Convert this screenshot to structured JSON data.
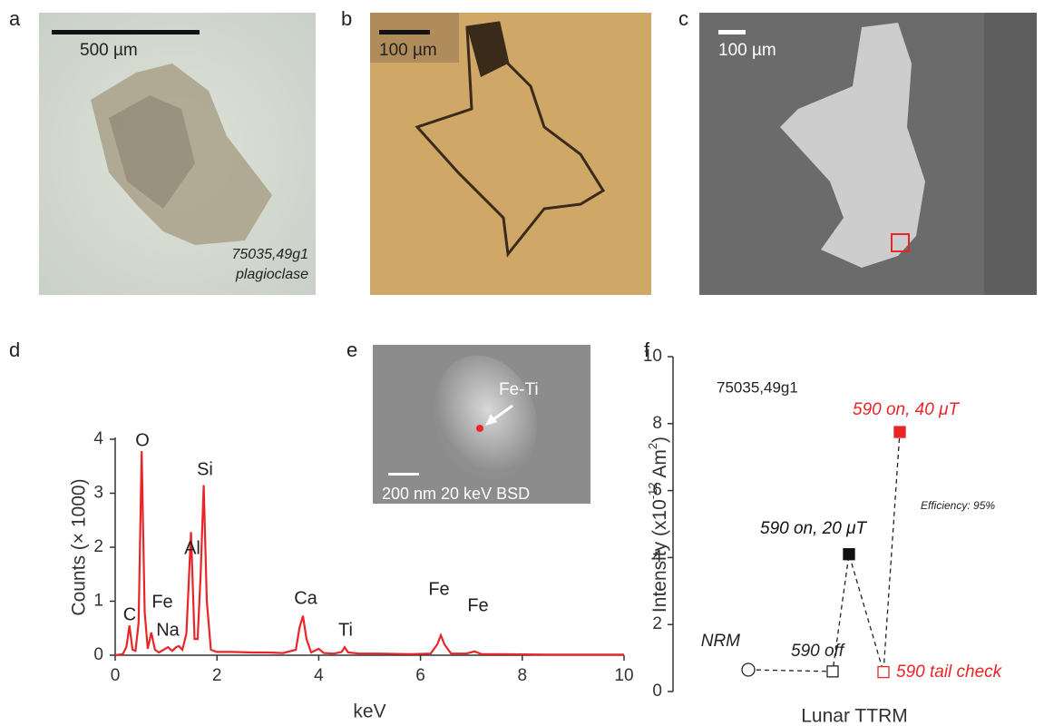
{
  "panels": {
    "a": {
      "letter": "a",
      "scale_label": "500 µm",
      "caption": [
        "75035,49g1",
        "plagioclase"
      ]
    },
    "b": {
      "letter": "b",
      "scale_label": "100 µm"
    },
    "c": {
      "letter": "c",
      "scale_label": "100 µm"
    },
    "d": {
      "letter": "d"
    },
    "e": {
      "letter": "e",
      "annotation": "Fe-Ti",
      "caption": "200 nm 20 keV BSD"
    },
    "f": {
      "letter": "f"
    }
  },
  "chart_data": [
    {
      "type": "line",
      "x_label": "keV",
      "y_label": "Counts (× 1000)",
      "color": "#e8262a",
      "x": [
        0,
        0.15,
        0.22,
        0.28,
        0.34,
        0.4,
        0.46,
        0.52,
        0.58,
        0.64,
        0.71,
        0.78,
        0.86,
        0.95,
        1.04,
        1.12,
        1.2,
        1.25,
        1.32,
        1.4,
        1.49,
        1.56,
        1.62,
        1.68,
        1.74,
        1.8,
        1.88,
        2.0,
        2.3,
        2.7,
        3.0,
        3.3,
        3.55,
        3.62,
        3.69,
        3.76,
        3.85,
        4.0,
        4.1,
        4.3,
        4.45,
        4.51,
        4.58,
        4.8,
        5.2,
        5.8,
        6.2,
        6.33,
        6.4,
        6.47,
        6.6,
        6.9,
        7.06,
        7.2,
        7.6,
        8.5,
        9.3,
        10
      ],
      "values": [
        0,
        0.02,
        0.15,
        0.55,
        0.1,
        0.08,
        0.6,
        3.78,
        0.8,
        0.12,
        0.42,
        0.1,
        0.05,
        0.1,
        0.15,
        0.08,
        0.15,
        0.17,
        0.1,
        0.4,
        2.28,
        0.3,
        0.3,
        1.5,
        3.15,
        1.0,
        0.1,
        0.06,
        0.06,
        0.05,
        0.05,
        0.04,
        0.1,
        0.5,
        0.73,
        0.3,
        0.05,
        0.12,
        0.04,
        0.03,
        0.06,
        0.15,
        0.05,
        0.03,
        0.03,
        0.02,
        0.03,
        0.2,
        0.37,
        0.2,
        0.03,
        0.03,
        0.07,
        0.02,
        0.02,
        0.01,
        0.01,
        0.01
      ],
      "xlim": [
        0,
        10
      ],
      "xticks": [
        0,
        2,
        4,
        6,
        8,
        10
      ],
      "ylim": [
        0,
        4
      ],
      "yticks": [
        0,
        1,
        2,
        3,
        4
      ],
      "peak_labels": [
        "C",
        "O",
        "Fe",
        "Na",
        "Al",
        "Si",
        "Ca",
        "Ti",
        "Fe",
        "Fe"
      ]
    },
    {
      "type": "scatter",
      "x_label": "Lunar TTRM",
      "y_label": [
        "Intensity (x10",
        "-12",
        " Am",
        "2",
        ")"
      ],
      "annotations": [
        "75035,49g1",
        "Efficiency: 95%"
      ],
      "categories": [
        "NRM",
        "590 off",
        "590 on, 20 μT",
        "590 tail check",
        "590 on, 40 μT"
      ],
      "values": [
        0.65,
        0.6,
        4.1,
        0.58,
        7.75
      ],
      "colors": [
        "#222222",
        "#222222",
        "#111111",
        "#e8262a",
        "#e8262a"
      ],
      "markers": [
        "circle",
        "square",
        "square",
        "square",
        "square"
      ],
      "filled": [
        false,
        false,
        true,
        false,
        true
      ],
      "ylim": [
        0,
        10
      ],
      "yticks": [
        0,
        2,
        4,
        6,
        8,
        10
      ]
    }
  ]
}
